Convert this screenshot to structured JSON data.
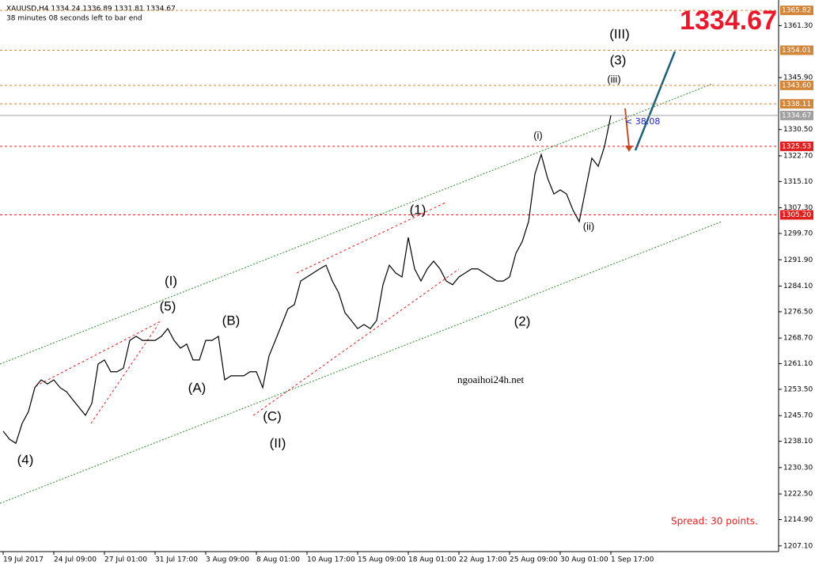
{
  "chart_data": {
    "type": "line",
    "header": "XAUUSD,H4  1334.24 1336.89 1331.81 1334.67",
    "subheader": "38 minutes 08 seconds left to bar end",
    "big_price": "1334.67",
    "watermark": "ngoaihoi24h.net",
    "spread": "Spread: 30 points.",
    "timer": "< 38:08",
    "x": [
      0,
      1,
      2,
      3,
      4,
      5,
      6,
      7,
      8,
      9,
      10,
      11,
      12,
      13,
      14,
      15,
      16,
      17,
      18,
      19,
      20,
      21,
      22,
      23,
      24,
      25,
      26,
      27,
      28,
      29,
      30,
      31,
      32,
      33,
      34,
      35,
      36,
      37,
      38,
      39,
      40,
      41,
      42,
      43,
      44,
      45,
      46,
      47,
      48,
      49,
      50,
      51,
      52,
      53,
      54,
      55,
      56,
      57,
      58,
      59,
      60,
      61,
      62,
      63,
      64,
      65,
      66,
      67,
      68,
      69,
      70,
      71,
      72,
      73,
      74,
      75,
      76,
      77,
      78,
      79,
      80,
      81,
      82,
      83,
      84,
      85,
      86,
      87,
      88,
      89,
      90,
      91,
      92,
      93,
      94,
      95,
      96
    ],
    "series": [
      {
        "name": "XAUUSD",
        "color": "#000000",
        "values": [
          1241.1,
          1238.7,
          1237.5,
          1243.4,
          1246.9,
          1254.0,
          1256.3,
          1255.1,
          1256.3,
          1254.0,
          1252.8,
          1250.4,
          1248.1,
          1245.8,
          1249.3,
          1261.0,
          1262.2,
          1258.7,
          1258.7,
          1259.8,
          1268.0,
          1269.2,
          1268.0,
          1268.0,
          1268.0,
          1269.2,
          1271.5,
          1268.0,
          1265.7,
          1266.9,
          1262.2,
          1262.2,
          1268.0,
          1268.0,
          1269.2,
          1256.3,
          1257.5,
          1257.5,
          1257.5,
          1258.7,
          1258.7,
          1254.0,
          1263.4,
          1268.0,
          1272.7,
          1277.4,
          1278.6,
          1285.6,
          1286.8,
          1288.0,
          1289.2,
          1290.3,
          1285.6,
          1282.1,
          1276.2,
          1273.9,
          1271.5,
          1272.7,
          1271.5,
          1273.9,
          1284.5,
          1290.3,
          1288.0,
          1286.8,
          1298.5,
          1289.2,
          1285.6,
          1289.2,
          1291.5,
          1289.2,
          1285.6,
          1284.5,
          1286.8,
          1288.0,
          1289.2,
          1289.2,
          1288.0,
          1286.8,
          1285.6,
          1285.6,
          1286.8,
          1293.8,
          1297.3,
          1303.2,
          1317.3,
          1323.1,
          1316.1,
          1311.4,
          1312.6,
          1311.4,
          1306.7,
          1303.2,
          1312.6,
          1322.0,
          1319.6,
          1325.5,
          1334.67
        ]
      }
    ],
    "xlim": [
      -0.5,
      122
    ],
    "ylim": [
      1205.4,
      1368.9
    ],
    "xticks": [
      {
        "value": 0,
        "label": "19 Jul 2017"
      },
      {
        "value": 8,
        "label": "24 Jul 09:00"
      },
      {
        "value": 16,
        "label": "27 Jul 01:00"
      },
      {
        "value": 24,
        "label": "31 Jul 17:00"
      },
      {
        "value": 32,
        "label": "3 Aug 09:00"
      },
      {
        "value": 40,
        "label": "8 Aug 01:00"
      },
      {
        "value": 48,
        "label": "10 Aug 17:00"
      },
      {
        "value": 56,
        "label": "15 Aug 09:00"
      },
      {
        "value": 64,
        "label": "18 Aug 01:00"
      },
      {
        "value": 72,
        "label": "22 Aug 17:00"
      },
      {
        "value": 80,
        "label": "25 Aug 09:00"
      },
      {
        "value": 88,
        "label": "30 Aug 01:00"
      },
      {
        "value": 96,
        "label": "1 Sep 17:00"
      }
    ],
    "yticks": [
      {
        "value": 1361.3,
        "label": "1361.30"
      },
      {
        "value": 1345.9,
        "label": "1345.90"
      },
      {
        "value": 1330.5,
        "label": "1330.50"
      },
      {
        "value": 1322.7,
        "label": "1322.70"
      },
      {
        "value": 1315.1,
        "label": "1315.10"
      },
      {
        "value": 1307.3,
        "label": "1307.30"
      },
      {
        "value": 1299.7,
        "label": "1299.70"
      },
      {
        "value": 1291.9,
        "label": "1291.90"
      },
      {
        "value": 1284.1,
        "label": "1284.10"
      },
      {
        "value": 1276.5,
        "label": "1276.50"
      },
      {
        "value": 1268.7,
        "label": "1268.70"
      },
      {
        "value": 1261.1,
        "label": "1261.10"
      },
      {
        "value": 1253.5,
        "label": "1253.50"
      },
      {
        "value": 1245.7,
        "label": "1245.70"
      },
      {
        "value": 1238.1,
        "label": "1238.10"
      },
      {
        "value": 1230.3,
        "label": "1230.30"
      },
      {
        "value": 1222.5,
        "label": "1222.50"
      },
      {
        "value": 1214.9,
        "label": "1214.90"
      },
      {
        "value": 1207.1,
        "label": "1207.10"
      }
    ],
    "levels": [
      {
        "value": 1365.82,
        "label": "1365.82",
        "color": "#d2863a"
      },
      {
        "value": 1354.01,
        "label": "1354.01",
        "color": "#d2863a"
      },
      {
        "value": 1343.6,
        "label": "1343.60",
        "color": "#d2863a"
      },
      {
        "value": 1338.11,
        "label": "1338.11",
        "color": "#d2863a"
      },
      {
        "value": 1334.67,
        "label": "1334.67",
        "color": "#a0a0a0"
      },
      {
        "value": 1325.53,
        "label": "1325.53",
        "color": "#e02020"
      },
      {
        "value": 1305.2,
        "label": "1305.20",
        "color": "#e02020"
      }
    ],
    "waves": [
      {
        "text": "(4)",
        "color": "#8b1a1a"
      },
      {
        "text": "(5)",
        "color": "#8b1a1a"
      },
      {
        "text": "(I)",
        "color": "#1a8a1a"
      },
      {
        "text": "(A)",
        "color": "#8b1a1a"
      },
      {
        "text": "(B)",
        "color": "#8b1a1a"
      },
      {
        "text": "(C)",
        "color": "#8b1a1a"
      },
      {
        "text": "(II)",
        "color": "#1a8a1a"
      },
      {
        "text": "(1)",
        "color": "#8b1a1a"
      },
      {
        "text": "(2)",
        "color": "#8b1a1a"
      },
      {
        "text": "(3)",
        "color": "#8b1a1a"
      },
      {
        "text": "(III)",
        "color": "#1a8a1a"
      },
      {
        "text": "(i)",
        "color": "#c040c0"
      },
      {
        "text": "(ii)",
        "color": "#c040c0"
      },
      {
        "text": "(iii)",
        "color": "#c040c0"
      }
    ]
  }
}
